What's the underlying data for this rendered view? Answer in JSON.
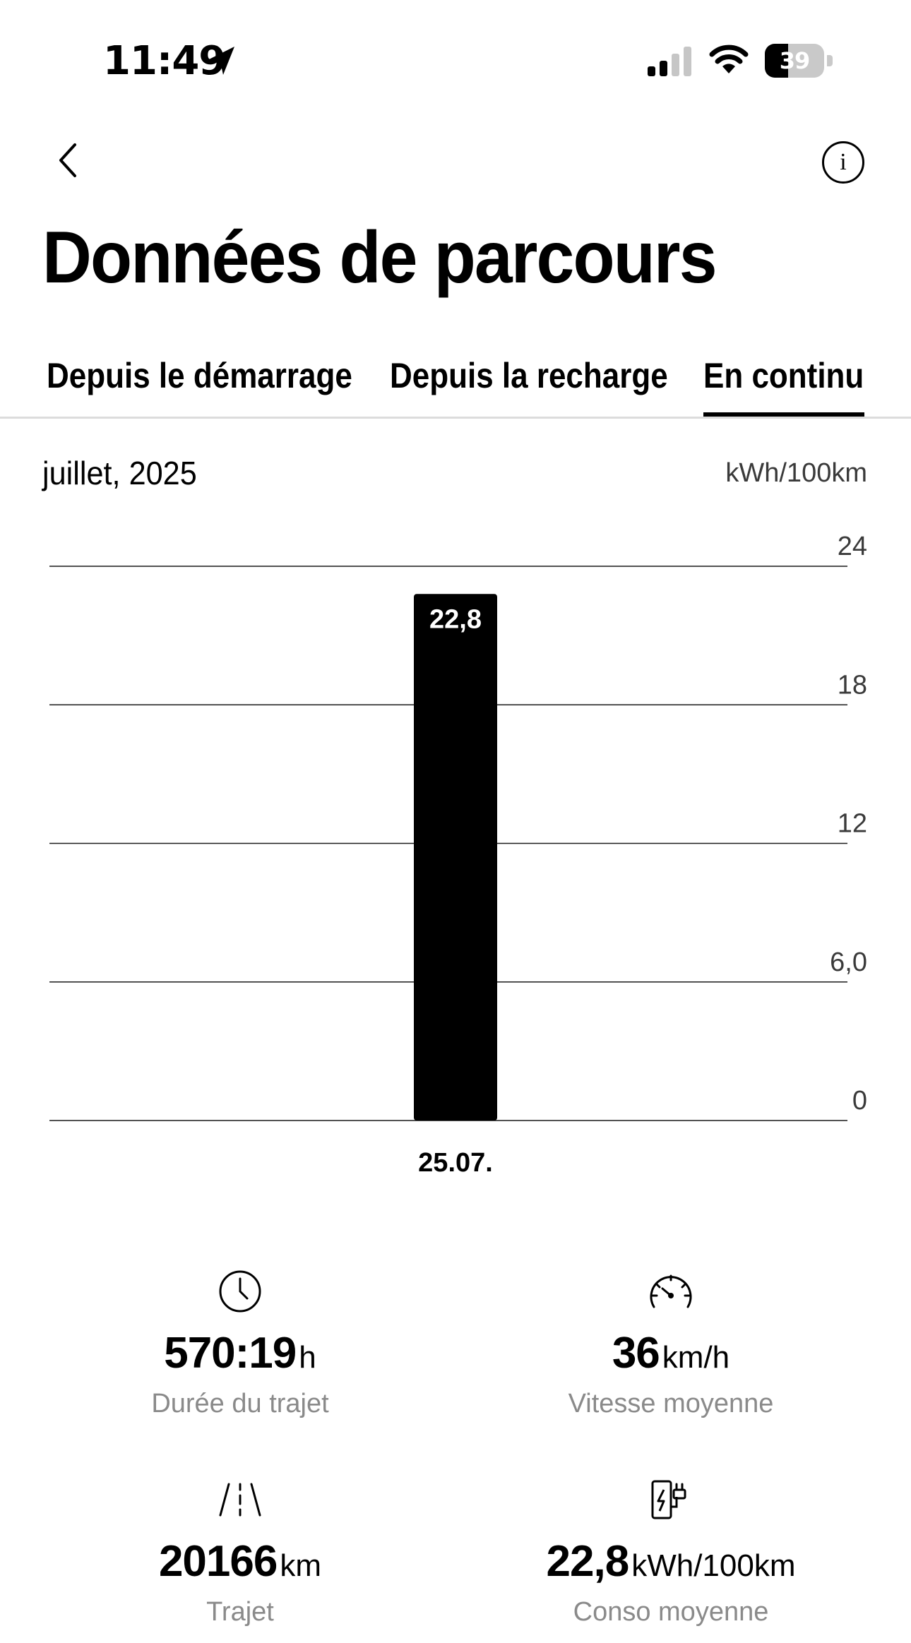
{
  "status_bar": {
    "time": "11:49",
    "battery": "39",
    "battery_level": 0.39
  },
  "header": {
    "title": "Données de parcours"
  },
  "tabs": [
    {
      "label": "Depuis le démarrage",
      "active": false
    },
    {
      "label": "Depuis la recharge",
      "active": false
    },
    {
      "label": "En continu",
      "active": true
    }
  ],
  "period": {
    "label": "juillet, 2025",
    "unit": "kWh/100km"
  },
  "chart_data": {
    "type": "bar",
    "categories": [
      "25.07."
    ],
    "values": [
      22.8
    ],
    "data_labels": [
      "22,8"
    ],
    "y_ticks": [
      "0",
      "6,0",
      "12",
      "18",
      "24"
    ],
    "y_tick_values": [
      0,
      6,
      12,
      18,
      24
    ],
    "ylim": [
      0,
      24
    ],
    "ylabel": "kWh/100km",
    "grid": true,
    "bar_color": "#000000"
  },
  "stats": [
    {
      "icon": "clock-icon",
      "value": "570:19",
      "unit": "h",
      "label": "Durée du trajet"
    },
    {
      "icon": "speedometer-icon",
      "value": "36",
      "unit": "km/h",
      "label": "Vitesse moyenne"
    },
    {
      "icon": "road-icon",
      "value": "20166",
      "unit": "km",
      "label": "Trajet"
    },
    {
      "icon": "charging-station-icon",
      "value": "22,8",
      "unit": "kWh/100km",
      "label": "Conso moyenne"
    }
  ],
  "colors": {
    "text": "#000000",
    "secondary_text": "#8a8a8a",
    "divider": "#dcdcdc"
  }
}
